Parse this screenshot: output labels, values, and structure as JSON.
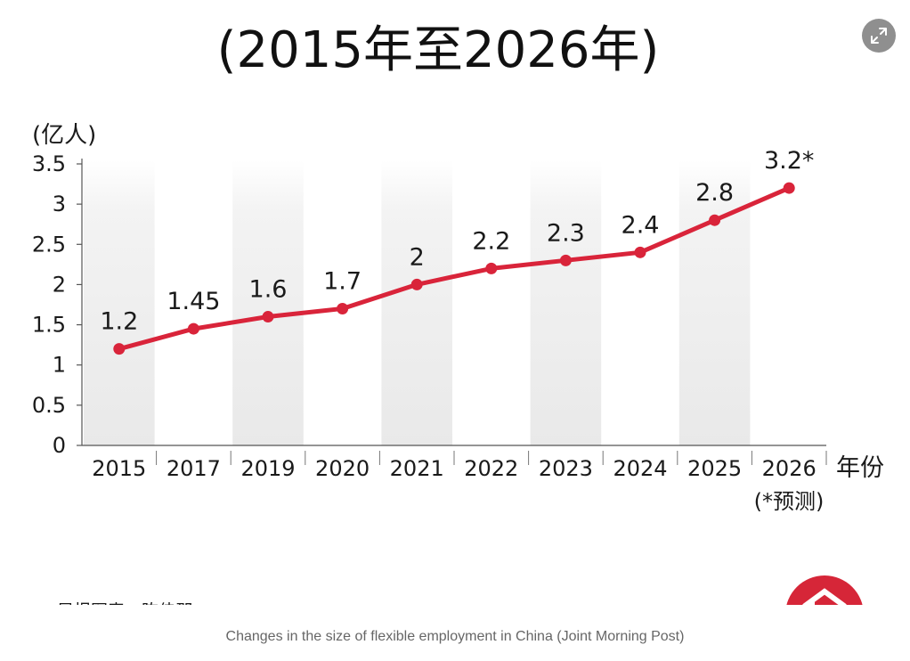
{
  "expand_icon": "expand-icon",
  "logo_icon": "zaobao-logo",
  "caption": "Changes in the size of flexible employment in China (Joint Morning Post)",
  "chart_data": {
    "type": "line",
    "title": "(2015年至2026年)",
    "ylabel": "(亿人)",
    "xlabel": "年份",
    "categories": [
      "2015",
      "2017",
      "2019",
      "2020",
      "2021",
      "2022",
      "2023",
      "2024",
      "2025",
      "2026"
    ],
    "values": [
      1.2,
      1.45,
      1.6,
      1.7,
      2,
      2.2,
      2.3,
      2.4,
      2.8,
      3.2
    ],
    "data_labels": [
      "1.2",
      "1.45",
      "1.6",
      "1.7",
      "2",
      "2.2",
      "2.3",
      "2.4",
      "2.8",
      "3.2*"
    ],
    "yticks": [
      "0",
      "0.5",
      "1",
      "1.5",
      "2",
      "2.5",
      "3",
      "3.5"
    ],
    "ylim": [
      0,
      3.5
    ],
    "forecast_note": "(*预测)",
    "source": "早报图表：陈佳郡",
    "grid": false,
    "line_color": "#d9243a",
    "band_color": "#ebebeb"
  }
}
